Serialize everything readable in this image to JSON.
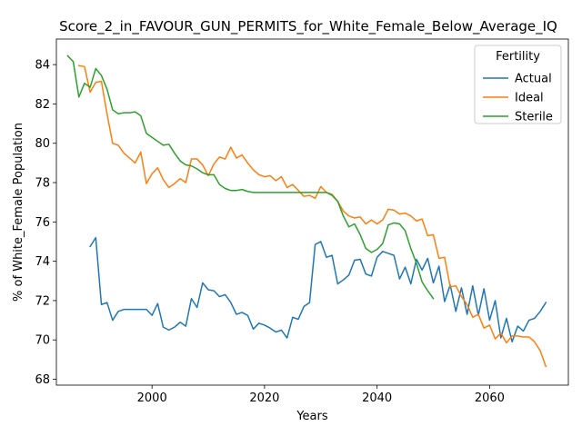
{
  "chart_data": {
    "type": "line",
    "title": "Score_2_in_FAVOUR_GUN_PERMITS_for_White_Female_Below_Average_IQ",
    "xlabel": "Years",
    "ylabel": "% of White_Female Population",
    "xlim": [
      1983,
      2074
    ],
    "ylim": [
      67.7,
      85.3
    ],
    "xticks": [
      2000,
      2020,
      2040,
      2060
    ],
    "yticks": [
      68,
      70,
      72,
      74,
      76,
      78,
      80,
      82,
      84
    ],
    "grid": false,
    "legend": {
      "title": "Fertility",
      "placement": "top-right"
    },
    "series": [
      {
        "name": "Actual",
        "color": "#1f77b4",
        "x": [
          1989,
          1990,
          1991,
          1992,
          1993,
          1994,
          1995,
          1996,
          1997,
          1998,
          1999,
          2000,
          2001,
          2002,
          2003,
          2004,
          2005,
          2006,
          2007,
          2008,
          2009,
          2010,
          2011,
          2012,
          2013,
          2014,
          2015,
          2016,
          2017,
          2018,
          2019,
          2020,
          2021,
          2022,
          2023,
          2024,
          2025,
          2026,
          2027,
          2028,
          2029,
          2030,
          2031,
          2032,
          2033,
          2034,
          2035,
          2036,
          2037,
          2038,
          2039,
          2040,
          2041,
          2042,
          2043,
          2044,
          2045,
          2046,
          2047,
          2048,
          2049,
          2050,
          2051,
          2052,
          2053,
          2054,
          2055,
          2056,
          2057,
          2058,
          2059,
          2060,
          2061,
          2062,
          2063,
          2064,
          2065,
          2066,
          2067,
          2068,
          2069,
          2070
        ],
        "values": [
          74.75,
          75.2,
          71.8,
          71.9,
          71.0,
          71.45,
          71.55,
          71.55,
          71.55,
          71.55,
          71.55,
          71.25,
          71.85,
          70.65,
          70.5,
          70.65,
          70.9,
          70.7,
          72.1,
          71.65,
          72.9,
          72.55,
          72.5,
          72.2,
          72.3,
          71.9,
          71.3,
          71.4,
          71.25,
          70.55,
          70.85,
          70.75,
          70.6,
          70.4,
          70.5,
          70.1,
          71.15,
          71.05,
          71.7,
          71.9,
          74.85,
          75.0,
          74.2,
          74.3,
          72.85,
          73.05,
          73.3,
          74.05,
          74.1,
          73.35,
          73.25,
          74.2,
          74.5,
          74.4,
          74.3,
          73.1,
          73.7,
          72.85,
          74.1,
          73.55,
          74.15,
          72.9,
          73.75,
          71.95,
          72.8,
          71.45,
          72.65,
          71.3,
          72.75,
          71.25,
          72.6,
          71.0,
          72.0,
          70.1,
          71.1,
          69.9,
          70.7,
          70.45,
          71.0,
          71.1,
          71.45,
          71.9
        ]
      },
      {
        "name": "Ideal",
        "color": "#ff7f0e",
        "x": [
          1987,
          1988,
          1989,
          1990,
          1991,
          1992,
          1993,
          1994,
          1995,
          1996,
          1997,
          1998,
          1999,
          2000,
          2001,
          2002,
          2003,
          2004,
          2005,
          2006,
          2007,
          2008,
          2009,
          2010,
          2011,
          2012,
          2013,
          2014,
          2015,
          2016,
          2017,
          2018,
          2019,
          2020,
          2021,
          2022,
          2023,
          2024,
          2025,
          2026,
          2027,
          2028,
          2029,
          2030,
          2031,
          2032,
          2033,
          2034,
          2035,
          2036,
          2037,
          2038,
          2039,
          2040,
          2041,
          2042,
          2043,
          2044,
          2045,
          2046,
          2047,
          2048,
          2049,
          2050,
          2051,
          2052,
          2053,
          2054,
          2055,
          2056,
          2057,
          2058,
          2059,
          2060,
          2061,
          2062,
          2063,
          2064,
          2065,
          2066,
          2067,
          2068,
          2069,
          2070
        ],
        "values": [
          83.95,
          83.9,
          82.6,
          83.1,
          83.15,
          81.5,
          80.0,
          79.9,
          79.5,
          79.25,
          79.0,
          79.55,
          77.95,
          78.45,
          78.75,
          78.15,
          77.75,
          77.95,
          78.2,
          78.0,
          79.2,
          79.2,
          78.9,
          78.35,
          78.95,
          79.3,
          79.2,
          79.8,
          79.25,
          79.4,
          79.0,
          78.65,
          78.4,
          78.3,
          78.35,
          78.1,
          78.3,
          77.75,
          77.9,
          77.6,
          77.3,
          77.35,
          77.2,
          77.8,
          77.5,
          77.4,
          77.05,
          76.55,
          76.3,
          76.2,
          76.25,
          75.9,
          76.1,
          75.9,
          76.1,
          76.65,
          76.6,
          76.4,
          76.45,
          76.3,
          76.05,
          76.15,
          75.3,
          75.35,
          74.15,
          74.2,
          72.7,
          72.75,
          72.2,
          71.8,
          71.15,
          71.3,
          70.6,
          70.75,
          70.05,
          70.35,
          69.85,
          70.2,
          70.2,
          70.15,
          70.15,
          69.9,
          69.45,
          68.65
        ]
      },
      {
        "name": "Sterile",
        "color": "#2ca02c",
        "x": [
          1985,
          1986,
          1987,
          1988,
          1989,
          1990,
          1991,
          1992,
          1993,
          1994,
          1995,
          1996,
          1997,
          1998,
          1999,
          2000,
          2001,
          2002,
          2003,
          2004,
          2005,
          2006,
          2007,
          2008,
          2009,
          2010,
          2011,
          2012,
          2013,
          2014,
          2015,
          2016,
          2017,
          2018,
          2019,
          2020,
          2021,
          2022,
          2023,
          2024,
          2025,
          2026,
          2027,
          2028,
          2029,
          2030,
          2031,
          2032,
          2033,
          2034,
          2035,
          2036,
          2037,
          2038,
          2039,
          2040,
          2041,
          2042,
          2043,
          2044,
          2045,
          2046,
          2047,
          2048,
          2049,
          2050
        ],
        "values": [
          84.45,
          84.15,
          82.35,
          83.05,
          82.85,
          83.8,
          83.45,
          82.75,
          81.7,
          81.5,
          81.55,
          81.55,
          81.6,
          81.4,
          80.5,
          80.3,
          80.1,
          79.9,
          79.95,
          79.5,
          79.1,
          78.9,
          78.85,
          78.7,
          78.5,
          78.4,
          78.4,
          77.9,
          77.7,
          77.6,
          77.6,
          77.65,
          77.55,
          77.5,
          77.5,
          77.5,
          77.5,
          77.5,
          77.5,
          77.5,
          77.5,
          77.5,
          77.5,
          77.5,
          77.5,
          77.5,
          77.5,
          77.35,
          77.05,
          76.3,
          75.75,
          75.9,
          75.35,
          74.65,
          74.45,
          74.6,
          74.9,
          75.85,
          75.95,
          75.9,
          75.55,
          74.65,
          73.9,
          72.95,
          72.5,
          72.1
        ]
      }
    ]
  }
}
